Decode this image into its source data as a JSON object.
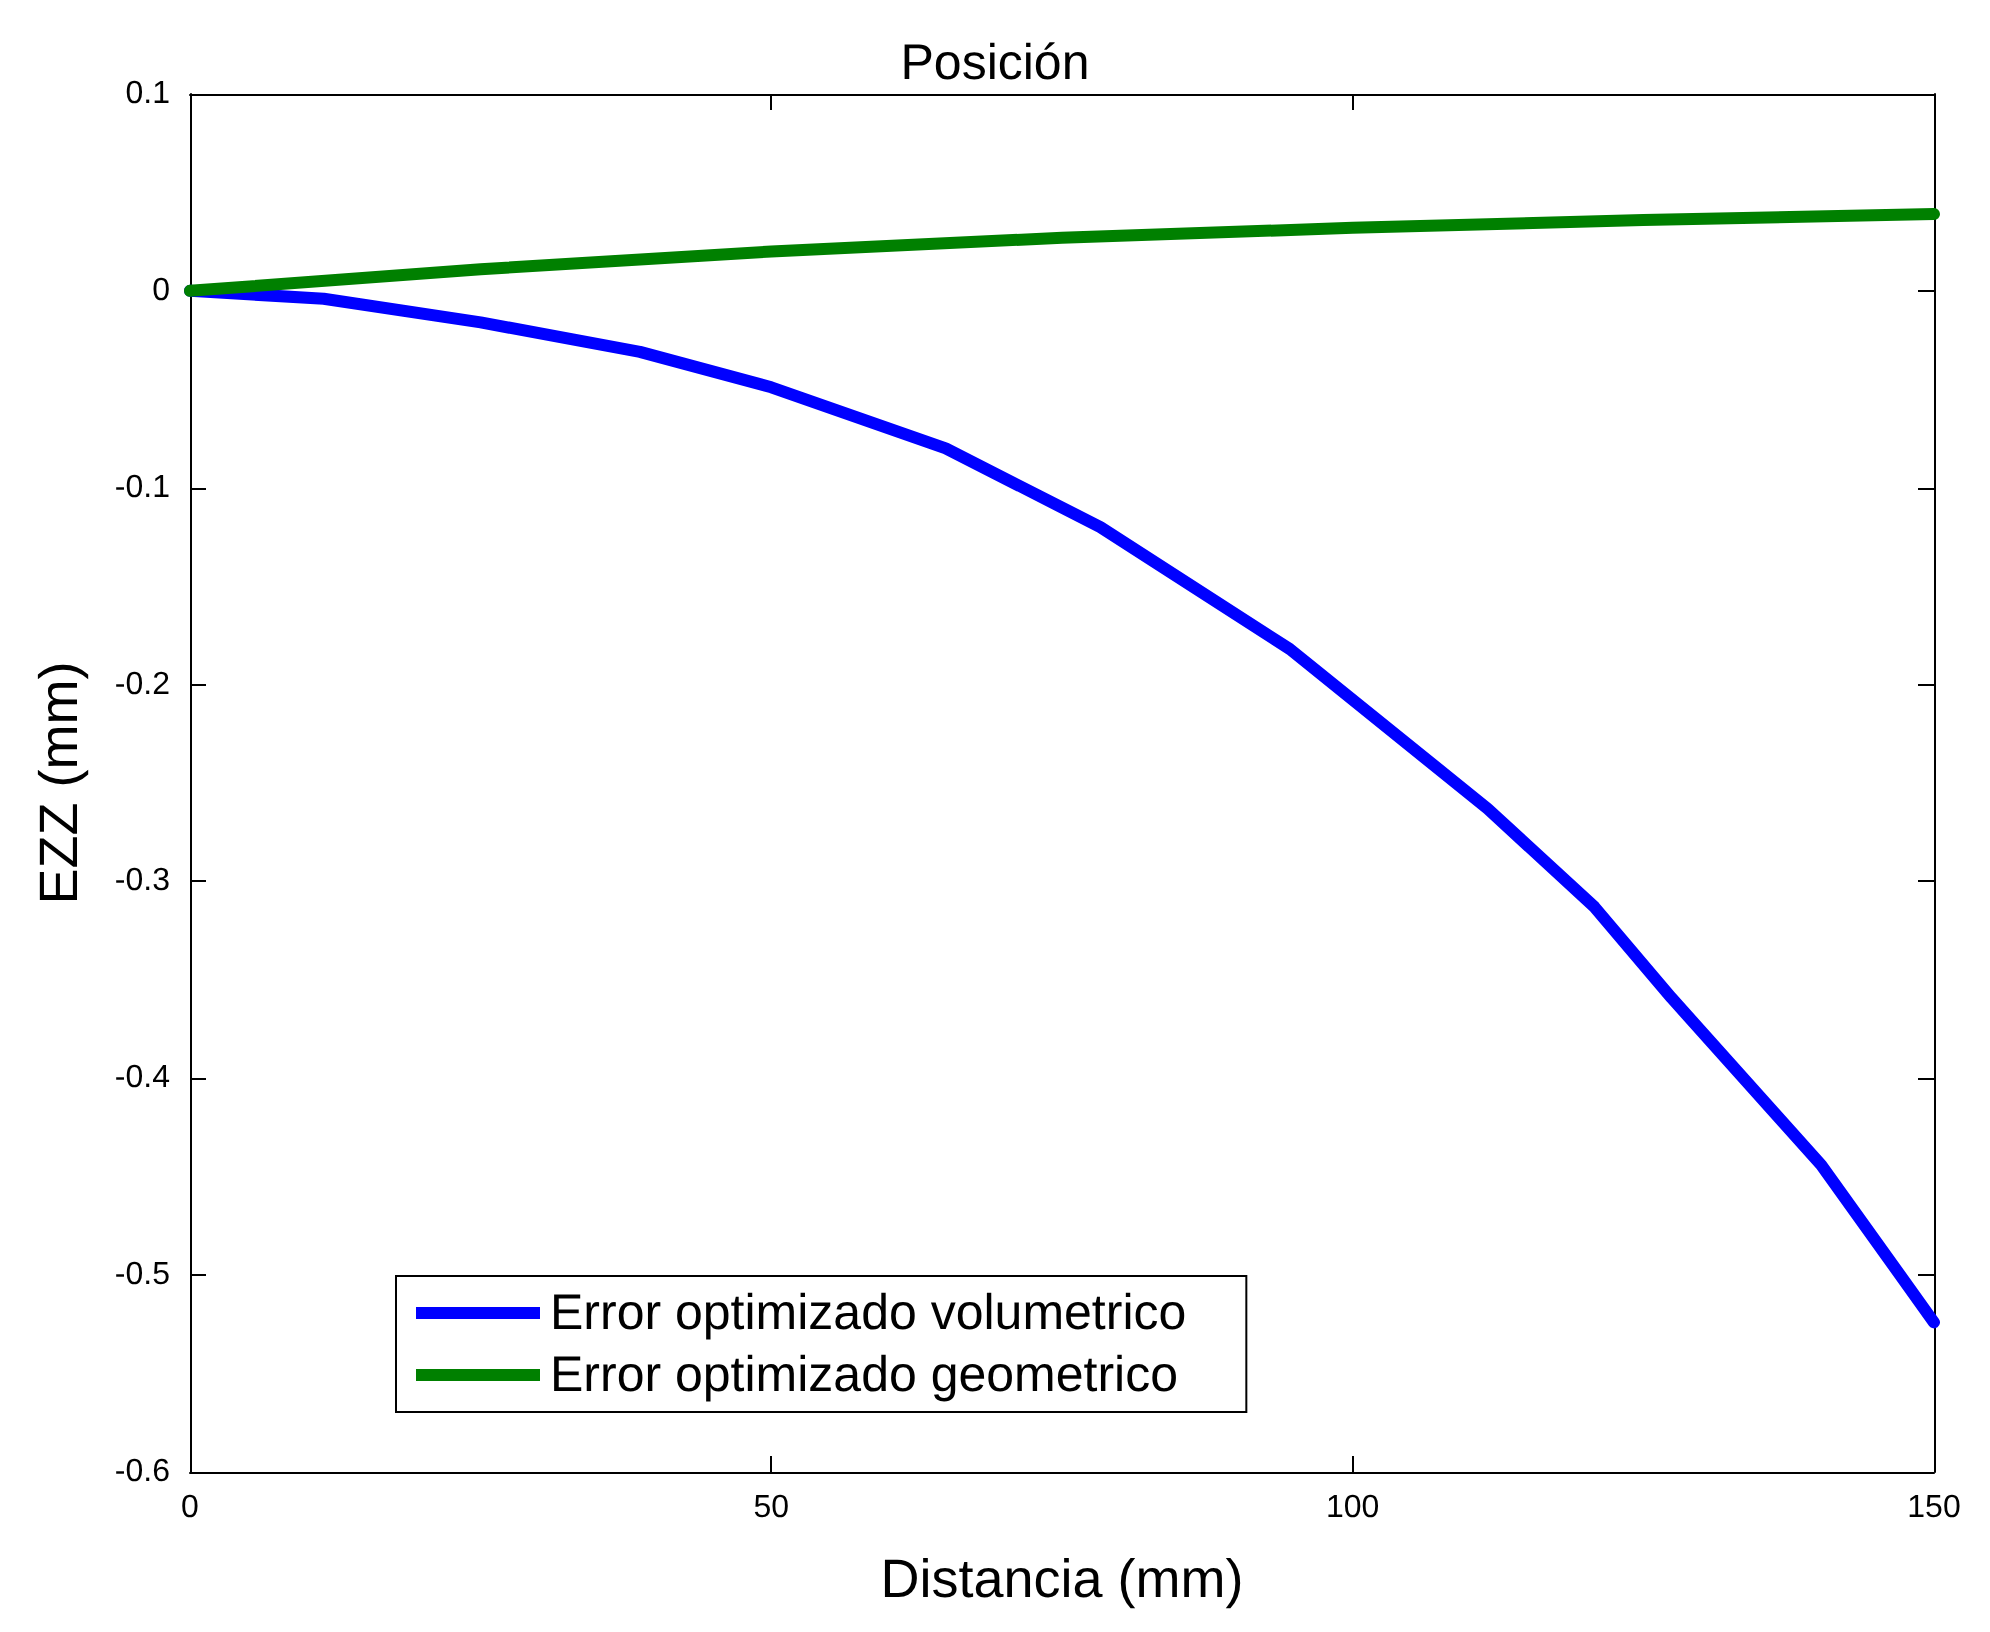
{
  "chart_data": {
    "type": "line",
    "title": "Posición",
    "xlabel": "Distancia (mm)",
    "ylabel": "EZZ (mm)",
    "xlim": [
      0,
      150
    ],
    "xticks": [
      0,
      50,
      100,
      150
    ],
    "ylim": [
      -0.6,
      0.1
    ],
    "yticks": [
      -0.6,
      -0.5,
      -0.4,
      -0.3,
      -0.2,
      -0.1,
      0,
      0.1
    ],
    "grid": false,
    "legend": "bottom left",
    "marker": "none",
    "line_style": "solid",
    "series": [
      {
        "name": "Error optimizado volumetrico",
        "color": "#0000ff",
        "x": [
          0,
          11.5,
          25,
          38.7,
          50,
          65,
          78.3,
          94.6,
          111.6,
          120.8,
          127.4,
          140.3,
          150
        ],
        "values": [
          0,
          -0.004,
          -0.016,
          -0.031,
          -0.049,
          -0.08,
          -0.12,
          -0.182,
          -0.263,
          -0.313,
          -0.359,
          -0.444,
          -0.524
        ]
      },
      {
        "name": "Error optimizado geometrico",
        "color": "#008000",
        "x": [
          0,
          25,
          50,
          75,
          100,
          125,
          150
        ],
        "values": [
          0,
          0.011,
          0.02,
          0.027,
          0.032,
          0.036,
          0.039
        ]
      }
    ]
  }
}
